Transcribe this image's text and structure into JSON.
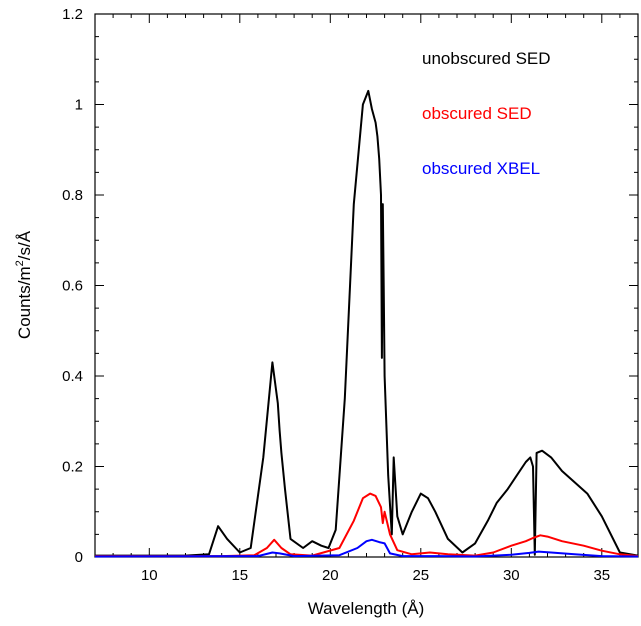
{
  "chart_data": {
    "type": "line",
    "title": "",
    "xlabel": "Wavelength (Å)",
    "ylabel_parts": {
      "base": "Counts/m",
      "superscript": "2",
      "suffix": "/s/Å"
    },
    "xlim": [
      7,
      37
    ],
    "ylim": [
      0,
      1.2
    ],
    "x_ticks": [
      10,
      15,
      20,
      25,
      30,
      35
    ],
    "y_ticks": [
      0,
      0.2,
      0.4,
      0.6,
      0.8,
      1,
      1.2
    ],
    "x_tick_labels": [
      "10",
      "15",
      "20",
      "25",
      "30",
      "35"
    ],
    "y_tick_labels": [
      "0",
      "0.2",
      "0.4",
      "0.6",
      "0.8",
      "1",
      "1.2"
    ],
    "grid": false,
    "legend_placement": "top-right",
    "series": [
      {
        "name": "unobscured SED",
        "color": "#000000",
        "x": [
          7,
          10,
          12,
          13.3,
          13.8,
          14.3,
          15,
          15.6,
          16.3,
          16.8,
          16.9,
          17,
          17.1,
          17.2,
          17.3,
          17.5,
          17.8,
          18.5,
          19,
          19.5,
          19.9,
          20.3,
          20.8,
          21.3,
          21.8,
          22.1,
          22.3,
          22.5,
          22.6,
          22.7,
          22.8,
          22.85,
          22.9,
          22.95,
          23,
          23.2,
          23.4,
          23.5,
          23.7,
          24,
          24.5,
          25,
          25.4,
          25.8,
          26.5,
          27.3,
          28,
          28.7,
          29.2,
          29.8,
          30.3,
          30.8,
          31.05,
          31.2,
          31.3,
          31.4,
          31.7,
          32.2,
          32.8,
          33.5,
          34.2,
          35,
          36,
          37
        ],
        "y": [
          0.003,
          0.003,
          0.003,
          0.006,
          0.068,
          0.04,
          0.01,
          0.02,
          0.22,
          0.43,
          0.4,
          0.37,
          0.34,
          0.28,
          0.23,
          0.15,
          0.04,
          0.02,
          0.035,
          0.025,
          0.02,
          0.06,
          0.35,
          0.78,
          1.0,
          1.03,
          0.99,
          0.96,
          0.93,
          0.88,
          0.8,
          0.44,
          0.78,
          0.6,
          0.4,
          0.18,
          0.05,
          0.22,
          0.09,
          0.05,
          0.1,
          0.14,
          0.13,
          0.1,
          0.04,
          0.01,
          0.03,
          0.08,
          0.12,
          0.15,
          0.18,
          0.21,
          0.22,
          0.2,
          0.005,
          0.23,
          0.235,
          0.22,
          0.19,
          0.165,
          0.14,
          0.09,
          0.01,
          0.003
        ]
      },
      {
        "name": "obscured SED",
        "color": "#ff0000",
        "x": [
          7,
          14,
          15.8,
          16.5,
          16.9,
          17.3,
          17.8,
          19,
          20.5,
          21.3,
          21.8,
          22.2,
          22.5,
          22.8,
          22.9,
          23,
          23.3,
          23.7,
          24.5,
          25.5,
          26.5,
          28,
          29,
          30,
          30.8,
          31.2,
          31.6,
          32,
          32.8,
          34,
          35,
          36,
          37
        ],
        "y": [
          0.002,
          0.002,
          0.004,
          0.02,
          0.038,
          0.02,
          0.006,
          0.003,
          0.02,
          0.08,
          0.13,
          0.14,
          0.135,
          0.11,
          0.075,
          0.1,
          0.05,
          0.015,
          0.006,
          0.01,
          0.006,
          0.003,
          0.01,
          0.025,
          0.035,
          0.042,
          0.048,
          0.045,
          0.035,
          0.025,
          0.014,
          0.006,
          0.002
        ]
      },
      {
        "name": "obscured XBEL",
        "color": "#0000ff",
        "x": [
          7,
          16,
          16.8,
          17.2,
          18,
          20.5,
          21.5,
          22,
          22.3,
          22.7,
          23,
          23.3,
          24,
          26,
          28,
          30,
          31,
          31.5,
          32.2,
          33.5,
          35,
          37
        ],
        "y": [
          0.001,
          0.002,
          0.01,
          0.008,
          0.002,
          0.004,
          0.02,
          0.035,
          0.038,
          0.033,
          0.03,
          0.008,
          0.002,
          0.002,
          0.001,
          0.005,
          0.009,
          0.012,
          0.01,
          0.006,
          0.002,
          0.001
        ]
      }
    ]
  }
}
